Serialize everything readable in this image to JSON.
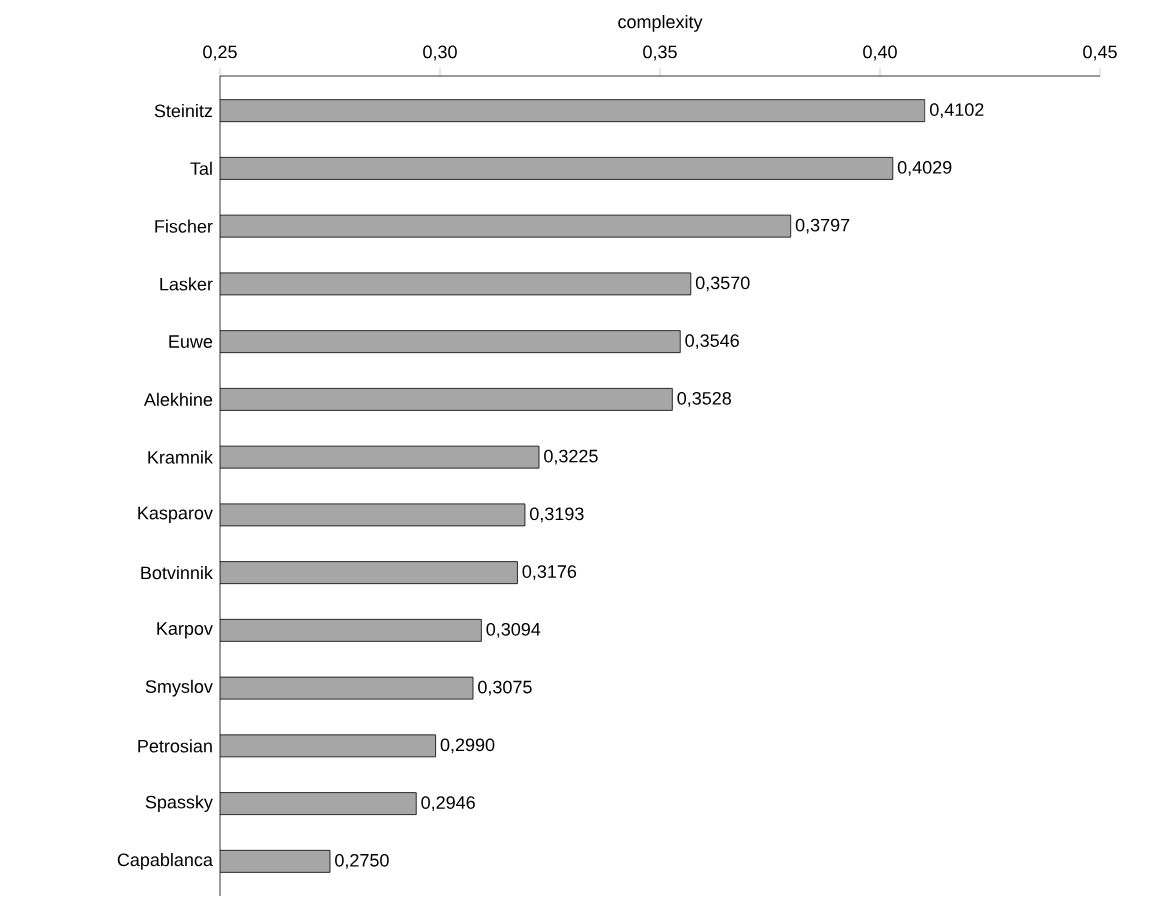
{
  "chart_data": {
    "type": "bar",
    "orientation": "horizontal",
    "xlabel": "complexity",
    "categories": [
      "Steinitz",
      "Tal",
      "Fischer",
      "Lasker",
      "Euwe",
      "Alekhine",
      "Kramnik",
      "Kasparov",
      "Botvinnik",
      "Karpov",
      "Smyslov",
      "Petrosian",
      "Spassky",
      "Capablanca"
    ],
    "values": [
      0.4102,
      0.4029,
      0.3797,
      0.357,
      0.3546,
      0.3528,
      0.3225,
      0.3193,
      0.3176,
      0.3094,
      0.3075,
      0.299,
      0.2946,
      0.275
    ],
    "value_labels": [
      "0,4102",
      "0,4029",
      "0,3797",
      "0,3570",
      "0,3546",
      "0,3528",
      "0,3225",
      "0,3193",
      "0,3176",
      "0,3094",
      "0,3075",
      "0,2990",
      "0,2946",
      "0,2750"
    ],
    "color": "#a6a6a6",
    "xlim": [
      0.25,
      0.45
    ],
    "xticks": [
      {
        "value": 0.25,
        "label": "0,25"
      },
      {
        "value": 0.3,
        "label": "0,30"
      },
      {
        "value": 0.35,
        "label": "0,35"
      },
      {
        "value": 0.4,
        "label": "0,40"
      },
      {
        "value": 0.45,
        "label": "0,45"
      }
    ],
    "grid": false
  }
}
